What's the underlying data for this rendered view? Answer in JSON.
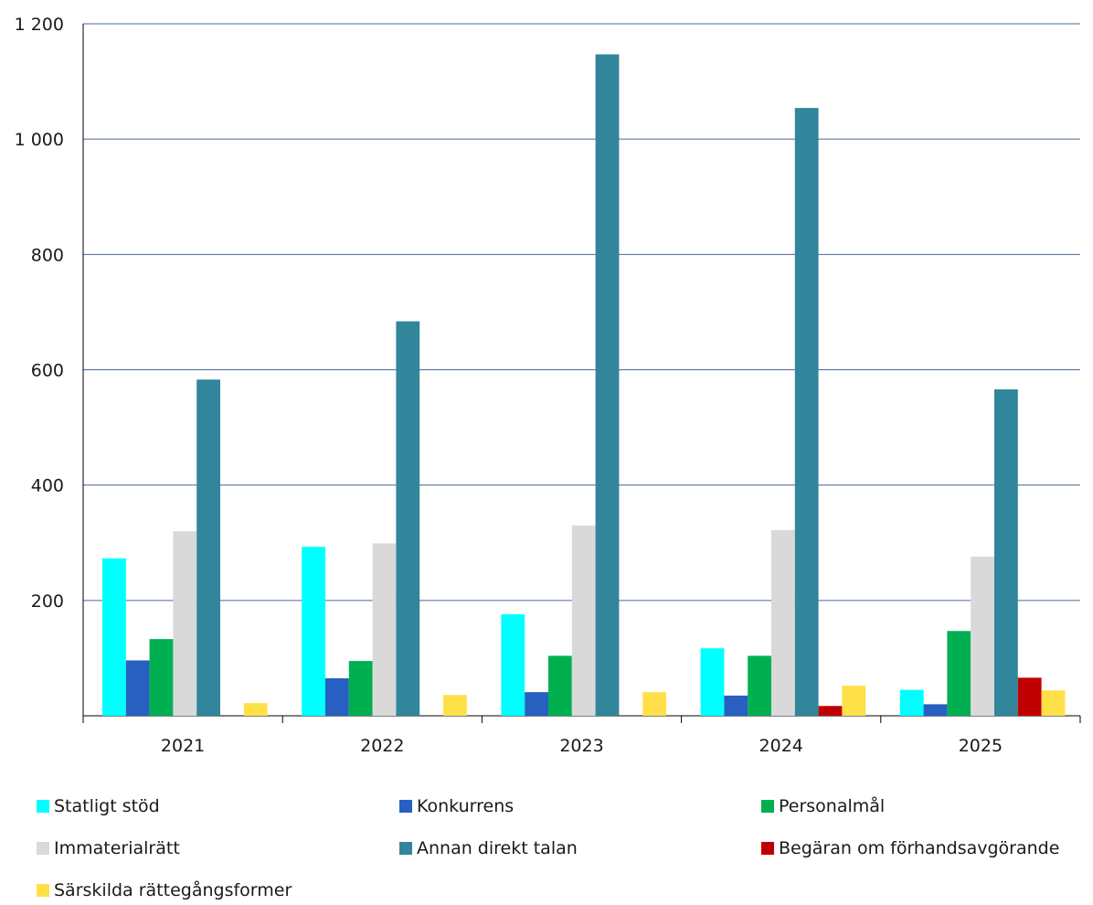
{
  "chart_data": {
    "type": "bar",
    "categories": [
      "2021",
      "2022",
      "2023",
      "2024",
      "2025"
    ],
    "series": [
      {
        "name": "Statligt stöd",
        "color": "#00FFFF",
        "values": [
          273,
          293,
          176,
          117,
          45
        ]
      },
      {
        "name": "Konkurrens",
        "color": "#2760C0",
        "values": [
          96,
          65,
          41,
          35,
          20
        ]
      },
      {
        "name": "Personalmål",
        "color": "#00B050",
        "values": [
          133,
          95,
          104,
          104,
          147
        ]
      },
      {
        "name": "Immaterialrätt",
        "color": "#D9D9D9",
        "values": [
          320,
          299,
          330,
          322,
          276
        ]
      },
      {
        "name": "Annan direkt talan",
        "color": "#31869B",
        "values": [
          583,
          684,
          1147,
          1054,
          566
        ]
      },
      {
        "name": "Begäran om förhandsavgörande",
        "color": "#C00000",
        "values": [
          0,
          0,
          0,
          17,
          66
        ]
      },
      {
        "name": "Särskilda rättegångsformer",
        "color": "#FFE048",
        "values": [
          22,
          36,
          41,
          52,
          44
        ]
      }
    ],
    "yticks": [
      {
        "value": 200,
        "label": "200"
      },
      {
        "value": 400,
        "label": "400"
      },
      {
        "value": 600,
        "label": "600"
      },
      {
        "value": 800,
        "label": "800"
      },
      {
        "value": 1000,
        "label": "1 000"
      },
      {
        "value": 1200,
        "label": "1 200"
      }
    ],
    "ylim": [
      0,
      1200
    ],
    "grid": true,
    "gridColor": "#4A6894",
    "legend_position": "bottom",
    "title": "",
    "xlabel": "",
    "ylabel": ""
  }
}
